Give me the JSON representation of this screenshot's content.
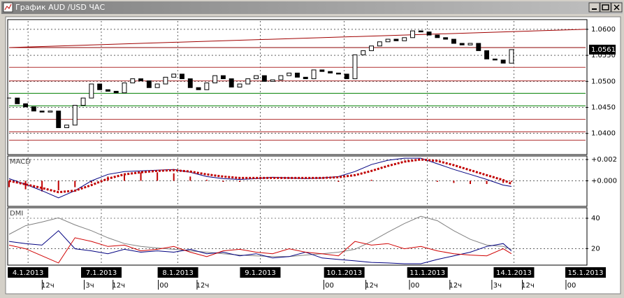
{
  "window": {
    "title": "График AUD /USD ЧАС"
  },
  "time_axis": {
    "xlim": [
      0,
      70
    ],
    "dates": [
      {
        "value": 2.3,
        "label": "4.1.2013"
      },
      {
        "value": 11.2,
        "label": "7.1.2013"
      },
      {
        "value": 20.5,
        "label": "8.1.2013"
      },
      {
        "value": 30.5,
        "label": "9.1.2013"
      },
      {
        "value": 40.7,
        "label": "10.1.2013"
      },
      {
        "value": 50.8,
        "label": "11.1.2013"
      },
      {
        "value": 61.3,
        "label": "14.1.2013"
      },
      {
        "value": 70,
        "label": "15.1.2013"
      }
    ],
    "hours": [
      {
        "value": 4.7,
        "label": "12ч"
      },
      {
        "value": 9.8,
        "label": "3ч"
      },
      {
        "value": 13.3,
        "label": "12ч"
      },
      {
        "value": 18.8,
        "label": "00"
      },
      {
        "value": 23.5,
        "label": "12ч"
      },
      {
        "value": 38.9,
        "label": "00"
      },
      {
        "value": 44,
        "label": "12ч"
      },
      {
        "value": 49.3,
        "label": "00"
      },
      {
        "value": 54.2,
        "label": "12ч"
      },
      {
        "value": 59.3,
        "label": "3ч"
      },
      {
        "value": 63,
        "label": "12ч"
      },
      {
        "value": 68.3,
        "label": "00"
      }
    ]
  },
  "chart_data": [
    {
      "type": "candlestick",
      "xlim": [
        0,
        70
      ],
      "ylim": [
        1.0362,
        1.0616
      ],
      "grid": true,
      "up_color": "#ffffff",
      "down_color": "#000000",
      "values": [
        1.0468,
        1.0457,
        1.0451,
        1.0443,
        1.0441,
        1.0443,
        1.0411,
        1.0416,
        1.0454,
        1.0468,
        1.0495,
        1.0484,
        1.0481,
        1.0478,
        1.0497,
        1.0505,
        1.0501,
        1.0488,
        1.0495,
        1.0508,
        1.0514,
        1.0505,
        1.0488,
        1.0484,
        1.0497,
        1.0511,
        1.0505,
        1.0489,
        1.0495,
        1.0505,
        1.0511,
        1.05,
        1.0503,
        1.0511,
        1.0516,
        1.0508,
        1.0505,
        1.0522,
        1.0519,
        1.0516,
        1.0514,
        1.0505,
        1.0551,
        1.0559,
        1.0568,
        1.0576,
        1.0581,
        1.0578,
        1.0584,
        1.0597,
        1.0595,
        1.0589,
        1.0584,
        1.0581,
        1.0573,
        1.057,
        1.0573,
        1.0559,
        1.0543,
        1.0541,
        1.0535,
        1.0561
      ],
      "yticks": [
        {
          "value": 1.06,
          "label": "1.0600"
        },
        {
          "value": 1.055,
          "label": "1.0550"
        },
        {
          "value": 1.05,
          "label": "1.0500"
        },
        {
          "value": 1.045,
          "label": "1.0450"
        },
        {
          "value": 1.04,
          "label": "1.0400"
        }
      ],
      "current": {
        "value": 1.0561,
        "label": "1.0561"
      },
      "levels": [
        {
          "value": 1.0565,
          "color": "#8b0000"
        },
        {
          "value": 1.0527,
          "color": "#b03030"
        },
        {
          "value": 1.0501,
          "color": "#b03030"
        },
        {
          "value": 1.0477,
          "color": "#008000"
        },
        {
          "value": 1.0453,
          "color": "#008000"
        },
        {
          "value": 1.0427,
          "color": "#b03030"
        },
        {
          "value": 1.0403,
          "color": "#b03030"
        },
        {
          "value": 1.0387,
          "color": "#b03030"
        }
      ],
      "trendline": {
        "values": [
          1.0565,
          1.06
        ],
        "color": "#a00000"
      }
    },
    {
      "type": "line",
      "label": "MACD",
      "xlim": [
        0,
        70
      ],
      "ylim": [
        -0.00227,
        0.0022
      ],
      "grid": true,
      "x": [
        0,
        2,
        4,
        6,
        8,
        10,
        12,
        14,
        16,
        18,
        20,
        22,
        24,
        26,
        28,
        30,
        32,
        34,
        36,
        38,
        40,
        42,
        44,
        46,
        48,
        50,
        52,
        54,
        56,
        58,
        60,
        61
      ],
      "yticks": [
        {
          "value": 0.002,
          "label": "+0.002"
        },
        {
          "value": 0,
          "label": "+0.000"
        }
      ],
      "series": [
        {
          "color": "#c00000",
          "style": "histogram",
          "values": [
            -0.0006,
            -0.0008,
            -0.001,
            -0.0009,
            -0.0006,
            -0.0002,
            0.0004,
            0.0007,
            0.0008,
            0.0008,
            0.0007,
            0.0004,
            0.0001,
            -0.0001,
            -0.0001,
            0,
            0,
            0,
            0,
            0,
            -0.0001,
            0,
            0.0001,
            0,
            0,
            0,
            -0.0001,
            -0.0002,
            -0.0003,
            -0.0003,
            -0.0002,
            -0.0001
          ]
        },
        {
          "color": "#000080",
          "style": "solid",
          "values": [
            0.0002,
            -0.00033,
            -0.00093,
            -0.0016,
            -0.00093,
            0,
            0.0006,
            0.00087,
            0.00093,
            0.001,
            0.00107,
            0.0008,
            0.0004,
            0.0002,
            0.00013,
            0.0002,
            0.00033,
            0.00027,
            0.0002,
            0.00027,
            0.0004,
            0.00087,
            0.00153,
            0.00193,
            0.00213,
            0.00213,
            0.0016,
            0.00107,
            0.0006,
            0.00013,
            -0.0004,
            -0.00053
          ]
        },
        {
          "color": "#c00000",
          "style": "dotted",
          "values": [
            0,
            -0.00033,
            -0.00067,
            -0.00107,
            -0.00093,
            -0.0004,
            0.0002,
            0.0006,
            0.0008,
            0.00093,
            0.001,
            0.00087,
            0.0006,
            0.0004,
            0.00027,
            0.00027,
            0.00027,
            0.00027,
            0.00027,
            0.00027,
            0.00033,
            0.00053,
            0.00093,
            0.0014,
            0.0018,
            0.002,
            0.00187,
            0.00147,
            0.001,
            0.00053,
            7e-05,
            -0.00027
          ]
        }
      ]
    },
    {
      "type": "line",
      "label": "DMI",
      "xlim": [
        0,
        70
      ],
      "ylim": [
        10,
        46
      ],
      "grid": true,
      "x": [
        0,
        2,
        4,
        6,
        8,
        10,
        12,
        14,
        16,
        18,
        20,
        22,
        24,
        26,
        28,
        30,
        32,
        34,
        36,
        38,
        40,
        42,
        44,
        46,
        48,
        50,
        52,
        54,
        56,
        58,
        60,
        61
      ],
      "yticks": [
        40,
        20
      ],
      "series": [
        {
          "color": "#808080",
          "style": "solid",
          "values": [
            29.4,
            35.1,
            37.5,
            40.3,
            35.6,
            31.8,
            27.1,
            23.3,
            21.4,
            20.4,
            19.5,
            18.5,
            17.6,
            16.6,
            15.7,
            15.2,
            14.7,
            14.7,
            15.7,
            16.6,
            17.6,
            19.5,
            24.7,
            30.8,
            36.5,
            41.3,
            38.4,
            31.8,
            26.1,
            22.3,
            21.4,
            19.5
          ]
        },
        {
          "color": "#000080",
          "style": "solid",
          "values": [
            24.7,
            23.3,
            22.3,
            31.8,
            19.9,
            18.5,
            16.6,
            19.5,
            17.6,
            18.5,
            17.6,
            19.5,
            16.6,
            17.6,
            15.2,
            16.6,
            13.8,
            14.7,
            17.6,
            13.8,
            12.8,
            11.9,
            10.9,
            10.5,
            10.0,
            10.0,
            12.8,
            15.2,
            17.6,
            21.4,
            23.3,
            18.5
          ]
        },
        {
          "color": "#d00000",
          "style": "solid",
          "values": [
            22.3,
            19.9,
            15.2,
            10.5,
            27.1,
            24.7,
            21.4,
            22.3,
            18.5,
            19.5,
            21.4,
            17.6,
            14.7,
            18.5,
            19.5,
            17.6,
            16.6,
            19.9,
            17.6,
            16.6,
            15.2,
            24.7,
            22.3,
            23.3,
            19.9,
            21.4,
            18.5,
            16.6,
            15.7,
            15.2,
            19.9,
            16.6
          ]
        }
      ]
    }
  ]
}
